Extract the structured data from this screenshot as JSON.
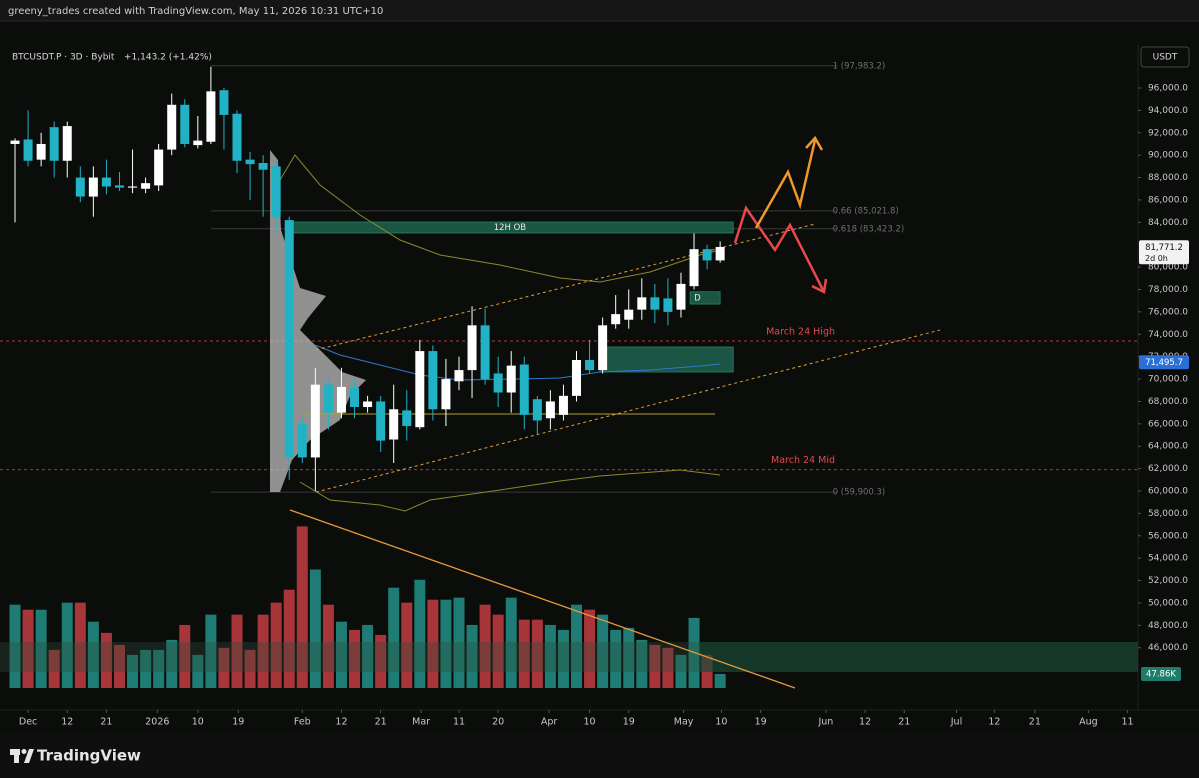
{
  "chart_data": {
    "type": "candlestick",
    "credit": "greeny_trades created with TradingView.com, May 11, 2026 10:31 UTC+10",
    "symbol_info": "BTCUSDT.P · 3D · Bybit",
    "change": "+1,143.2 (+1.42%)",
    "currency": "USDT",
    "brand": "TradingView",
    "up_color": "#ffffff",
    "down_color": "#22b2c6",
    "volume_up_color": "#1f7c74",
    "volume_down_color": "#a8353a",
    "grid": false,
    "xlim": [
      -1.15,
      86.0
    ],
    "ylim": [
      40437,
      99841
    ],
    "vlim": [
      0,
      600000
    ],
    "xticks": [
      {
        "value": 1.0,
        "label": "Dec"
      },
      {
        "value": 4.0,
        "label": "12"
      },
      {
        "value": 7.0,
        "label": "21"
      },
      {
        "value": 10.9,
        "label": "2026"
      },
      {
        "value": 14.0,
        "label": "10"
      },
      {
        "value": 17.1,
        "label": "19"
      },
      {
        "value": 22.0,
        "label": "Feb"
      },
      {
        "value": 25.0,
        "label": "12"
      },
      {
        "value": 28.0,
        "label": "21"
      },
      {
        "value": 31.1,
        "label": "Mar"
      },
      {
        "value": 34.0,
        "label": "11"
      },
      {
        "value": 37.0,
        "label": "20"
      },
      {
        "value": 40.9,
        "label": "Apr"
      },
      {
        "value": 44.0,
        "label": "10"
      },
      {
        "value": 47.0,
        "label": "19"
      },
      {
        "value": 51.2,
        "label": "May"
      },
      {
        "value": 54.1,
        "label": "10"
      },
      {
        "value": 57.1,
        "label": "19"
      },
      {
        "value": 62.1,
        "label": "Jun"
      },
      {
        "value": 65.1,
        "label": "12"
      },
      {
        "value": 68.1,
        "label": "21"
      },
      {
        "value": 72.1,
        "label": "Jul"
      },
      {
        "value": 75.0,
        "label": "12"
      },
      {
        "value": 78.1,
        "label": "21"
      },
      {
        "value": 82.2,
        "label": "Aug"
      },
      {
        "value": 85.2,
        "label": "11"
      }
    ],
    "yticks": [
      {
        "value": 46000,
        "label": "46,000.0"
      },
      {
        "value": 48000,
        "label": "48,000.0"
      },
      {
        "value": 50000,
        "label": "50,000.0"
      },
      {
        "value": 52000,
        "label": "52,000.0"
      },
      {
        "value": 54000,
        "label": "54,000.0"
      },
      {
        "value": 56000,
        "label": "56,000.0"
      },
      {
        "value": 58000,
        "label": "58,000.0"
      },
      {
        "value": 60000,
        "label": "60,000.0"
      },
      {
        "value": 62000,
        "label": "62,000.0"
      },
      {
        "value": 64000,
        "label": "64,000.0"
      },
      {
        "value": 66000,
        "label": "66,000.0"
      },
      {
        "value": 68000,
        "label": "68,000.0"
      },
      {
        "value": 70000,
        "label": "70,000.0"
      },
      {
        "value": 72000,
        "label": "72,000.0"
      },
      {
        "value": 74000,
        "label": "74,000.0"
      },
      {
        "value": 76000,
        "label": "76,000.0"
      },
      {
        "value": 78000,
        "label": "78,000.0"
      },
      {
        "value": 80000,
        "label": "80,000.0"
      },
      {
        "value": 84000,
        "label": "84,000.0"
      },
      {
        "value": 86000,
        "label": "86,000.0"
      },
      {
        "value": 88000,
        "label": "88,000.0"
      },
      {
        "value": 90000,
        "label": "90,000.0"
      },
      {
        "value": 92000,
        "label": "92,000.0"
      },
      {
        "value": 94000,
        "label": "94,000.0"
      },
      {
        "value": 96000,
        "label": "96,000.0"
      }
    ],
    "ohlc": {
      "open": [
        91000,
        91400,
        89600,
        92500,
        89500,
        88000,
        86300,
        88000,
        87300,
        87100,
        87000,
        87300,
        90500,
        94500,
        90900,
        91200,
        95800,
        93700,
        89600,
        89300,
        89000,
        84200,
        66000,
        63000,
        69500,
        67000,
        69200,
        67500,
        68000,
        64600,
        67200,
        65700,
        72500,
        67300,
        69800,
        70800,
        74800,
        70500,
        68800,
        71300,
        68200,
        66500,
        66800,
        68500,
        71700,
        70800,
        74900,
        75300,
        76200,
        77300,
        77200,
        76200,
        78300,
        81600,
        80600
      ],
      "high": [
        91500,
        94000,
        92000,
        93000,
        93000,
        89000,
        89000,
        89600,
        88500,
        90500,
        88000,
        91000,
        95500,
        95000,
        93500,
        97900,
        96000,
        94000,
        90300,
        90000,
        89500,
        84500,
        66500,
        71000,
        70000,
        71000,
        70000,
        68500,
        68500,
        69500,
        69000,
        73500,
        73000,
        71800,
        72000,
        76500,
        76300,
        72000,
        72500,
        72000,
        68500,
        69000,
        69500,
        72500,
        73500,
        75500,
        77500,
        78000,
        79000,
        78500,
        79000,
        79500,
        83000,
        82000,
        82300
      ],
      "low": [
        84000,
        89000,
        89000,
        88000,
        88000,
        85800,
        84500,
        86500,
        86800,
        86600,
        86600,
        86800,
        90000,
        90700,
        90600,
        91000,
        90500,
        88400,
        86000,
        84500,
        83000,
        61000,
        62500,
        60000,
        65500,
        66500,
        66500,
        67000,
        63500,
        62500,
        64500,
        65500,
        66300,
        65800,
        69000,
        68300,
        69500,
        67500,
        67000,
        65500,
        65000,
        65500,
        66300,
        68000,
        70500,
        70500,
        74500,
        74500,
        75300,
        75000,
        74800,
        75500,
        78000,
        79800,
        80400
      ],
      "close": [
        91300,
        89500,
        91000,
        89500,
        92600,
        86300,
        88000,
        87200,
        87100,
        87200,
        87500,
        90500,
        94500,
        91000,
        91300,
        95700,
        93600,
        89500,
        89200,
        88700,
        84500,
        63000,
        63000,
        69500,
        67000,
        69300,
        67500,
        68000,
        64500,
        67300,
        65800,
        72500,
        67300,
        70000,
        70800,
        74800,
        70000,
        68800,
        71200,
        66800,
        66300,
        68000,
        68500,
        71700,
        70800,
        74800,
        75800,
        76200,
        77300,
        76200,
        76000,
        78500,
        81600,
        80600,
        81800
      ]
    },
    "volume": [
      284000,
      267000,
      267000,
      130000,
      291000,
      291000,
      226000,
      188000,
      147000,
      113000,
      130000,
      130000,
      164000,
      215000,
      113000,
      250000,
      137000,
      250000,
      130000,
      250000,
      291000,
      335000,
      551000,
      404000,
      284000,
      226000,
      198000,
      215000,
      181000,
      342000,
      291000,
      369000,
      301000,
      301000,
      308000,
      215000,
      284000,
      250000,
      308000,
      233000,
      233000,
      215000,
      198000,
      284000,
      267000,
      250000,
      198000,
      205000,
      164000,
      147000,
      137000,
      113000,
      239000,
      113000,
      47860
    ],
    "volume_marker": {
      "value": 47860,
      "label": "47.86K"
    },
    "last_price": {
      "value": 81771.2,
      "label": "81,771.2"
    },
    "countdown": "2d 0h",
    "ema_price": {
      "value": 71495.7,
      "label": "71,495.7"
    },
    "fib_x_range": [
      15.0,
      63.0
    ],
    "fib_levels": [
      {
        "value": 97983.2,
        "label": "1 (97,983.2)"
      },
      {
        "value": 85021.8,
        "label": "0.66 (85,021.8)"
      },
      {
        "value": 83423.2,
        "label": "0.618 (83,423.2)"
      },
      {
        "value": 59900.3,
        "label": "0 (59,900.3)"
      }
    ],
    "levels": [
      {
        "value": 73400,
        "label": "March 24 High",
        "color": "#e04a4a"
      },
      {
        "value": 61900,
        "label": "March 24 Mid",
        "color": "#e04a4a"
      }
    ],
    "zone_color": "#1d5e4c",
    "zones": [
      {
        "label": "12H OB",
        "range": [
          83050,
          84030
        ],
        "x_range": [
          20.8,
          55.0
        ]
      },
      {
        "label": "D",
        "range": [
          76700,
          77800
        ],
        "x_range": [
          51.7,
          54.0
        ]
      },
      {
        "range": [
          70630,
          72860
        ],
        "x_range": [
          44.8,
          55.0
        ]
      }
    ]
  }
}
